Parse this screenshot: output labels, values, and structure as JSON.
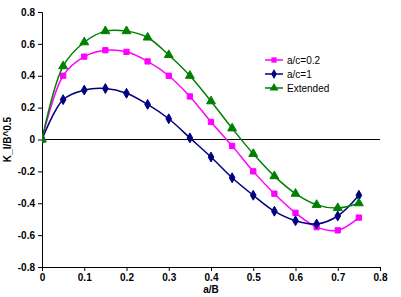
{
  "chart_data": {
    "type": "line",
    "x_label": "a/B",
    "y_label": "K_I/B^0.5",
    "x": [
      0,
      0.05,
      0.1,
      0.15,
      0.2,
      0.25,
      0.3,
      0.35,
      0.4,
      0.45,
      0.5,
      0.55,
      0.6,
      0.65,
      0.7,
      0.75
    ],
    "series": [
      {
        "name": "a/c=0.2",
        "color": "#ff00ff",
        "marker": "square",
        "line_style": "solid",
        "values": [
          0,
          0.4,
          0.52,
          0.56,
          0.55,
          0.49,
          0.4,
          0.27,
          0.11,
          -0.04,
          -0.2,
          -0.34,
          -0.46,
          -0.55,
          -0.57,
          -0.49
        ]
      },
      {
        "name": "a/c=1",
        "color": "#000080",
        "marker": "diamond",
        "line_style": "solid",
        "values": [
          0,
          0.25,
          0.31,
          0.32,
          0.29,
          0.22,
          0.13,
          0.01,
          -0.11,
          -0.24,
          -0.35,
          -0.45,
          -0.51,
          -0.53,
          -0.48,
          -0.35
        ]
      },
      {
        "name": "Extended",
        "color": "#008000",
        "marker": "triangle",
        "line_style": "solid",
        "values": [
          0,
          0.46,
          0.61,
          0.68,
          0.68,
          0.64,
          0.53,
          0.4,
          0.24,
          0.07,
          -0.09,
          -0.23,
          -0.34,
          -0.41,
          -0.43,
          -0.4
        ]
      }
    ],
    "xlim": [
      0,
      0.8
    ],
    "xticks": [
      0,
      0.1,
      0.2,
      0.3,
      0.4,
      0.5,
      0.6,
      0.7,
      0.8
    ],
    "ylim": [
      -0.8,
      0.8
    ],
    "yticks": [
      -0.8,
      -0.6,
      -0.4,
      -0.2,
      0,
      0.2,
      0.4,
      0.6,
      0.8
    ],
    "grid": false,
    "legend": "upper right"
  }
}
